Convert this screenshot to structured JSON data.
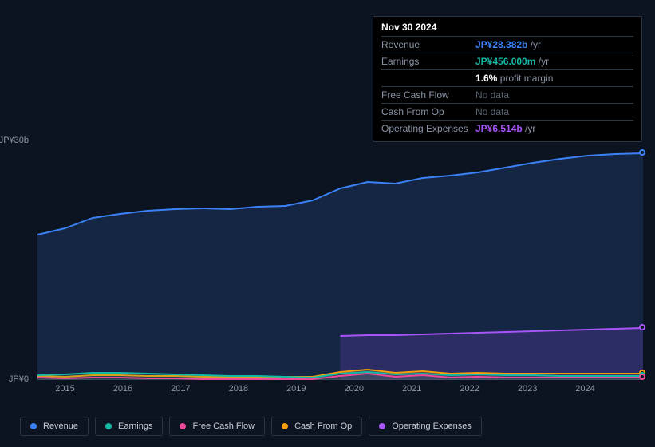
{
  "chart": {
    "type": "line-area",
    "background_color": "#0d1421",
    "grid_color": "#2a3544",
    "text_color": "#8a94a6",
    "ylim": [
      0,
      30
    ],
    "ylabel_top": "JP¥30b",
    "ylabel_bottom": "JP¥0",
    "x_years": [
      "2015",
      "2016",
      "2017",
      "2018",
      "2019",
      "2020",
      "2021",
      "2022",
      "2023",
      "2024"
    ],
    "series": [
      {
        "name": "Revenue",
        "color": "#3b82f6",
        "fill": "rgba(30,58,110,0.45)",
        "data": [
          18.2,
          19.0,
          20.3,
          20.8,
          21.2,
          21.4,
          21.5,
          21.4,
          21.7,
          21.8,
          22.5,
          24.0,
          24.8,
          24.6,
          25.3,
          25.6,
          26.0,
          26.6,
          27.2,
          27.7,
          28.1,
          28.3,
          28.4
        ]
      },
      {
        "name": "Earnings",
        "color": "#14b8a6",
        "fill": "rgba(20,184,166,0.12)",
        "data": [
          0.6,
          0.7,
          0.9,
          0.9,
          0.8,
          0.7,
          0.6,
          0.5,
          0.5,
          0.4,
          0.3,
          0.8,
          1.0,
          0.7,
          0.8,
          0.6,
          0.7,
          0.6,
          0.6,
          0.5,
          0.5,
          0.5,
          0.5
        ]
      },
      {
        "name": "Free Cash Flow",
        "color": "#ec4899",
        "fill": "rgba(236,72,153,0.0)",
        "data": [
          0.3,
          0.2,
          0.3,
          0.3,
          0.2,
          0.2,
          0.1,
          0.1,
          0.1,
          0.1,
          0.1,
          0.5,
          0.8,
          0.4,
          0.6,
          0.3,
          0.4,
          0.3,
          0.3,
          0.3,
          0.3,
          0.3,
          0.3
        ]
      },
      {
        "name": "Cash From Op",
        "color": "#f59e0b",
        "fill": "rgba(245,158,11,0.10)",
        "data": [
          0.5,
          0.4,
          0.6,
          0.6,
          0.5,
          0.5,
          0.4,
          0.4,
          0.4,
          0.4,
          0.4,
          1.0,
          1.3,
          0.9,
          1.1,
          0.8,
          0.9,
          0.8,
          0.8,
          0.8,
          0.8,
          0.8,
          0.8
        ]
      },
      {
        "name": "Operating Expenses",
        "color": "#a855f7",
        "fill": "rgba(120,70,200,0.25)",
        "start_index": 11,
        "data_partial": [
          5.5,
          5.6,
          5.6,
          5.7,
          5.8,
          5.9,
          6.0,
          6.1,
          6.2,
          6.3,
          6.4,
          6.5
        ]
      }
    ]
  },
  "tooltip": {
    "date": "Nov 30 2024",
    "rows": [
      {
        "label": "Revenue",
        "value": "JP¥28.382b",
        "suffix": "/yr",
        "color": "#3b82f6"
      },
      {
        "label": "Earnings",
        "value": "JP¥456.000m",
        "suffix": "/yr",
        "color": "#14b8a6"
      },
      {
        "label": "",
        "value": "1.6%",
        "suffix": "profit margin",
        "color": "#ffffff"
      },
      {
        "label": "Free Cash Flow",
        "nodata": "No data"
      },
      {
        "label": "Cash From Op",
        "nodata": "No data"
      },
      {
        "label": "Operating Expenses",
        "value": "JP¥6.514b",
        "suffix": "/yr",
        "color": "#a855f7"
      }
    ]
  },
  "legend": {
    "items": [
      {
        "label": "Revenue",
        "color": "#3b82f6"
      },
      {
        "label": "Earnings",
        "color": "#14b8a6"
      },
      {
        "label": "Free Cash Flow",
        "color": "#ec4899"
      },
      {
        "label": "Cash From Op",
        "color": "#f59e0b"
      },
      {
        "label": "Operating Expenses",
        "color": "#a855f7"
      }
    ]
  }
}
